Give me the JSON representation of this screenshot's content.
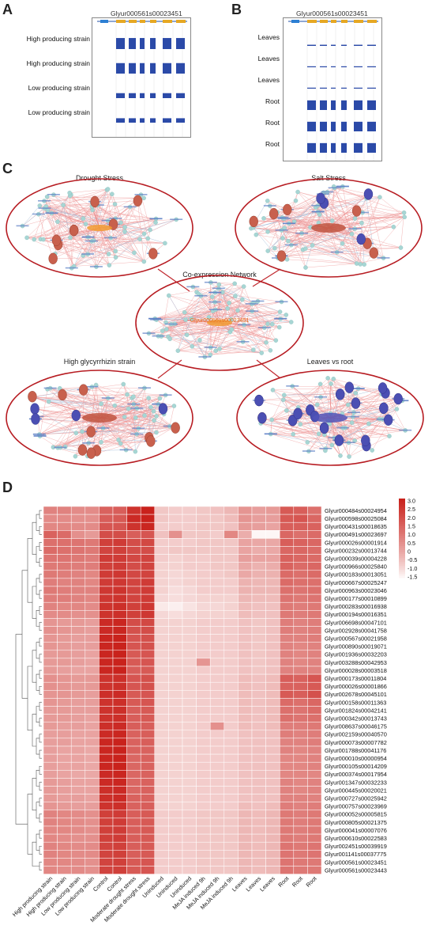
{
  "panels": {
    "A": {
      "letter": "A",
      "gene": "Glyur000561s00023451",
      "labels": [
        "High producing strain",
        "High producing strain",
        "Low producing strain",
        "Low producing strain"
      ],
      "heights": [
        1.0,
        0.95,
        0.45,
        0.4
      ]
    },
    "B": {
      "letter": "B",
      "gene": "Glyur000561s00023451",
      "labels": [
        "Leaves",
        "Leaves",
        "Leaves",
        "Root",
        "Root",
        "Root"
      ],
      "heights": [
        0.12,
        0.1,
        0.1,
        1.0,
        1.0,
        1.0
      ]
    },
    "C": {
      "letter": "C",
      "center_title": "Co-expression Network",
      "center_gene": "Glyur000561s00023451",
      "networks": [
        {
          "title": "Drought Stress"
        },
        {
          "title": "Salt Stress"
        },
        {
          "title": "High glycyrrhizin strain"
        },
        {
          "title": "Leaves vs root"
        }
      ]
    },
    "D": {
      "letter": "D",
      "colorbar_ticks": [
        "3.0",
        "2.5",
        "2.0",
        "1.5",
        "1.0",
        "0.5",
        "0",
        "-0.5",
        "-1.0",
        "-1.5"
      ]
    }
  },
  "chart_data": {
    "type": "heatmap",
    "columns": [
      "High producing strain",
      "High producing strain",
      "Low producing strain",
      "Low producing strain",
      "Control",
      "Control",
      "Moderate drought stress",
      "Moderate drought stress",
      "Uninduced",
      "Uninduced",
      "Uninduced",
      "MeJA induced 9h",
      "MeJA induced 9h",
      "MeJA induced 9h",
      "Leaves",
      "Leaves",
      "Leaves",
      "Root",
      "Root",
      "Root"
    ],
    "rows": [
      "Glyur000484s00024954",
      "Glyur000598s00025084",
      "Glyur000431s00018635",
      "Glyur000491s00023697",
      "Glyur000026s00001914",
      "Glyur000232s00013744",
      "Glyur000039s00004228",
      "Glyur000966s00025840",
      "Glyur000183s00013051",
      "Glyur000667s00025247",
      "Glyur000963s00023046",
      "Glyur000177s00010899",
      "Glyur000283s00016938",
      "Glyur000194s00016351",
      "Glyur006698s00047101",
      "Glyur002928s00041758",
      "Glyur000567s00021958",
      "Glyur000890s00019071",
      "Glyur001936s00032203",
      "Glyur003288s00042953",
      "Glyur000028s00003518",
      "Glyur000173s00011804",
      "Glyur000026s00001866",
      "Glyur002678s00045101",
      "Glyur000158s00011363",
      "Glyur001824s00042141",
      "Glyur000342s00013743",
      "Glyur008637s00046175",
      "Glyur002159s00040570",
      "Glyur000073s00007782",
      "Glyur001788s00041176",
      "Glyur000010s00000954",
      "Glyur000105s00014209",
      "Glyur000374s00017954",
      "Glyur001347s00032233",
      "Glyur000445s00020021",
      "Glyur000727s00025942",
      "Glyur000757s00023969",
      "Glyur000052s00005815",
      "Glyur000805s00021375",
      "Glyur000041s00007076",
      "Glyur000610s00022583",
      "Glyur002451s00039919",
      "Glyur001141s00037775",
      "Glyur000561s00023451",
      "Glyur000561s00023443"
    ],
    "values": [
      [
        0.8,
        0.8,
        0.6,
        0.6,
        1.5,
        1.6,
        2.6,
        3.0,
        -0.6,
        -0.7,
        -0.7,
        -0.6,
        -0.5,
        -0.3,
        0.4,
        0.2,
        0.3,
        1.7,
        1.6,
        1.2
      ],
      [
        0.6,
        0.6,
        0.5,
        0.5,
        1.6,
        1.7,
        2.8,
        3.0,
        -0.6,
        -0.7,
        -0.7,
        -0.6,
        -0.6,
        -0.4,
        0.4,
        0.2,
        0.2,
        1.7,
        1.8,
        1.4
      ],
      [
        0.7,
        0.7,
        0.6,
        0.6,
        1.8,
        1.8,
        2.6,
        2.9,
        -0.7,
        -0.7,
        -0.7,
        -0.6,
        -0.6,
        -0.5,
        0.3,
        0.2,
        0.1,
        1.6,
        1.6,
        1.5
      ],
      [
        1.5,
        1.3,
        0.5,
        0.3,
        2.0,
        2.0,
        1.6,
        1.8,
        -0.5,
        0.5,
        -0.6,
        -0.6,
        -0.7,
        0.7,
        -0.1,
        -1.4,
        -1.4,
        1.4,
        1.2,
        1.3
      ],
      [
        1.2,
        1.2,
        1.1,
        1.0,
        2.3,
        2.4,
        2.0,
        2.1,
        -0.7,
        -0.7,
        -0.7,
        -0.6,
        -0.6,
        -0.6,
        0.1,
        0.0,
        0.0,
        1.6,
        1.5,
        1.4
      ],
      [
        1.3,
        1.2,
        1.1,
        1.0,
        2.2,
        2.3,
        2.0,
        2.0,
        -0.7,
        -0.6,
        -0.6,
        -0.6,
        -0.6,
        -0.6,
        0.1,
        -0.1,
        0.0,
        1.4,
        1.4,
        1.3
      ],
      [
        1.1,
        1.1,
        1.0,
        0.9,
        2.4,
        2.4,
        2.1,
        2.2,
        -0.7,
        -0.8,
        -0.7,
        -0.7,
        -0.6,
        -0.6,
        0.2,
        0.1,
        0.1,
        1.5,
        1.4,
        1.3
      ],
      [
        1.0,
        1.0,
        0.9,
        0.9,
        2.3,
        2.4,
        2.0,
        2.2,
        -0.8,
        -0.8,
        -0.7,
        -0.7,
        -0.6,
        -0.6,
        0.0,
        -0.2,
        -0.1,
        1.5,
        1.3,
        1.4
      ],
      [
        1.0,
        0.9,
        0.8,
        0.7,
        2.4,
        2.5,
        2.1,
        2.2,
        -0.8,
        -0.9,
        -0.8,
        -0.7,
        -0.7,
        -0.6,
        0.0,
        -0.2,
        -0.2,
        1.3,
        1.2,
        1.3
      ],
      [
        0.9,
        0.8,
        0.8,
        0.7,
        2.4,
        2.5,
        2.2,
        2.4,
        -0.8,
        -0.9,
        -0.8,
        -0.7,
        -0.7,
        -0.7,
        -0.2,
        -0.3,
        -0.3,
        1.3,
        1.2,
        1.2
      ],
      [
        1.0,
        0.9,
        0.8,
        0.8,
        2.5,
        2.6,
        2.2,
        2.4,
        -0.8,
        -1.0,
        -0.9,
        -0.7,
        -0.7,
        -0.7,
        -0.2,
        -0.3,
        -0.3,
        1.2,
        1.1,
        1.2
      ],
      [
        0.9,
        0.9,
        0.8,
        0.7,
        2.5,
        2.6,
        2.2,
        2.4,
        -0.9,
        -1.0,
        -0.9,
        -0.8,
        -0.8,
        -0.8,
        -0.3,
        -0.4,
        -0.4,
        1.1,
        1.0,
        1.1
      ],
      [
        0.8,
        0.7,
        0.7,
        0.6,
        2.6,
        2.7,
        2.3,
        2.5,
        -1.2,
        -1.3,
        -1.1,
        -0.9,
        -0.9,
        -0.8,
        -0.4,
        -0.5,
        -0.5,
        1.0,
        0.9,
        1.0
      ],
      [
        0.6,
        0.6,
        0.5,
        0.5,
        2.6,
        2.7,
        2.3,
        2.5,
        -0.9,
        -1.0,
        -0.9,
        -0.8,
        -0.8,
        -0.8,
        -0.4,
        -0.5,
        -0.5,
        1.0,
        0.9,
        1.0
      ],
      [
        0.4,
        0.3,
        0.3,
        0.2,
        2.8,
        2.9,
        2.0,
        2.1,
        -0.8,
        -0.8,
        -0.8,
        -0.7,
        -0.7,
        -0.7,
        -0.5,
        -0.6,
        -0.5,
        0.9,
        0.8,
        0.9
      ],
      [
        0.5,
        0.4,
        0.3,
        0.2,
        2.8,
        2.9,
        1.9,
        2.0,
        -0.8,
        -0.8,
        -0.8,
        -0.7,
        -0.7,
        -0.7,
        -0.5,
        -0.6,
        -0.5,
        0.9,
        0.8,
        0.9
      ],
      [
        0.4,
        0.3,
        0.2,
        0.2,
        2.9,
        3.0,
        1.8,
        1.9,
        -0.8,
        -0.8,
        -0.8,
        -0.7,
        -0.7,
        -0.7,
        -0.5,
        -0.6,
        -0.5,
        0.8,
        0.8,
        0.9
      ],
      [
        0.4,
        0.3,
        0.2,
        0.2,
        2.9,
        3.0,
        1.8,
        1.9,
        -0.8,
        -0.8,
        -0.8,
        -0.7,
        -0.7,
        -0.7,
        -0.5,
        -0.6,
        -0.5,
        0.8,
        0.7,
        0.8
      ],
      [
        0.3,
        0.3,
        0.2,
        0.1,
        2.9,
        3.0,
        1.7,
        1.8,
        -0.8,
        -0.8,
        -0.8,
        -0.7,
        -0.7,
        -0.7,
        -0.5,
        -0.6,
        -0.5,
        0.8,
        0.7,
        0.8
      ],
      [
        0.3,
        0.3,
        0.2,
        0.1,
        2.9,
        3.0,
        1.7,
        1.8,
        -0.8,
        -0.8,
        -0.8,
        0.4,
        -0.7,
        -0.7,
        -0.5,
        -0.6,
        -0.5,
        0.8,
        0.7,
        0.8
      ],
      [
        0.3,
        0.2,
        0.1,
        0.1,
        2.9,
        3.0,
        1.6,
        1.7,
        -0.8,
        -0.8,
        -0.8,
        -0.7,
        -0.7,
        -0.7,
        -0.5,
        -0.6,
        -0.5,
        0.8,
        0.8,
        0.8
      ],
      [
        0.5,
        0.4,
        0.3,
        0.3,
        2.6,
        2.7,
        1.8,
        1.9,
        -0.8,
        -0.8,
        -0.8,
        -0.7,
        -0.7,
        -0.7,
        -0.4,
        -0.5,
        -0.4,
        1.6,
        1.5,
        1.8
      ],
      [
        0.5,
        0.4,
        0.3,
        0.3,
        2.6,
        2.7,
        1.8,
        1.9,
        -0.8,
        -0.8,
        -0.8,
        -0.7,
        -0.7,
        -0.7,
        -0.4,
        -0.5,
        -0.4,
        1.5,
        1.5,
        1.7
      ],
      [
        0.4,
        0.4,
        0.3,
        0.2,
        2.7,
        2.8,
        1.7,
        1.8,
        -0.8,
        -0.8,
        -0.8,
        -0.7,
        -0.7,
        -0.7,
        -0.4,
        -0.5,
        -0.4,
        1.7,
        1.6,
        1.9
      ],
      [
        0.4,
        0.3,
        0.2,
        0.2,
        2.6,
        2.7,
        1.7,
        1.8,
        -0.8,
        -0.8,
        -0.8,
        -0.7,
        -0.7,
        -0.7,
        -0.4,
        -0.5,
        -0.4,
        1.3,
        1.2,
        1.4
      ],
      [
        0.3,
        0.3,
        0.2,
        0.2,
        2.6,
        2.7,
        1.6,
        1.7,
        -0.8,
        -0.8,
        -0.8,
        -0.7,
        -0.7,
        -0.7,
        -0.4,
        -0.5,
        -0.4,
        1.2,
        1.1,
        1.3
      ],
      [
        0.3,
        0.3,
        0.2,
        0.1,
        2.6,
        2.7,
        1.6,
        1.7,
        -0.8,
        -0.8,
        -0.8,
        -0.7,
        -0.7,
        -0.7,
        -0.4,
        -0.5,
        -0.4,
        1.2,
        1.1,
        1.2
      ],
      [
        0.3,
        0.2,
        0.2,
        0.1,
        2.7,
        2.8,
        1.6,
        1.6,
        -0.8,
        -0.8,
        -0.8,
        -0.7,
        0.5,
        -0.7,
        -0.4,
        -0.5,
        -0.4,
        0.9,
        0.9,
        1.0
      ],
      [
        0.2,
        0.2,
        0.1,
        0.1,
        2.8,
        2.9,
        1.5,
        1.6,
        -0.8,
        -0.8,
        -0.8,
        -0.7,
        -0.7,
        -0.7,
        -0.5,
        -0.5,
        -0.5,
        0.9,
        0.8,
        0.9
      ],
      [
        0.2,
        0.2,
        0.1,
        0.1,
        2.9,
        3.0,
        1.5,
        1.6,
        -0.8,
        -0.8,
        -0.8,
        -0.7,
        -0.7,
        -0.7,
        -0.5,
        -0.5,
        -0.5,
        0.8,
        0.8,
        0.9
      ],
      [
        0.2,
        0.1,
        0.1,
        0.0,
        2.9,
        3.0,
        1.5,
        1.5,
        -0.8,
        -0.8,
        -0.8,
        -0.7,
        -0.7,
        -0.7,
        -0.5,
        -0.5,
        -0.5,
        0.8,
        0.7,
        0.8
      ],
      [
        0.2,
        0.1,
        0.1,
        0.0,
        2.9,
        3.0,
        1.4,
        1.5,
        -0.8,
        -0.8,
        -0.8,
        -0.7,
        -0.7,
        -0.7,
        -0.5,
        -0.5,
        -0.5,
        0.7,
        0.7,
        0.8
      ],
      [
        0.2,
        0.1,
        0.1,
        0.0,
        2.9,
        3.0,
        1.4,
        1.5,
        -0.8,
        -0.8,
        -0.8,
        -0.7,
        -0.7,
        -0.7,
        -0.5,
        -0.5,
        -0.5,
        0.7,
        0.7,
        0.8
      ],
      [
        0.2,
        0.1,
        0.0,
        0.0,
        2.8,
        2.9,
        1.4,
        1.5,
        -0.8,
        -0.8,
        -0.8,
        -0.7,
        -0.7,
        -0.7,
        -0.5,
        -0.5,
        -0.5,
        0.7,
        0.7,
        0.7
      ],
      [
        0.3,
        0.2,
        0.1,
        0.1,
        2.8,
        2.9,
        1.4,
        1.5,
        -0.8,
        -0.8,
        -0.8,
        -0.7,
        -0.7,
        -0.7,
        -0.5,
        -0.5,
        -0.5,
        0.8,
        0.7,
        0.8
      ],
      [
        0.3,
        0.2,
        0.1,
        0.1,
        2.7,
        2.8,
        1.4,
        1.5,
        -0.8,
        -0.8,
        -0.8,
        -0.7,
        -0.7,
        -0.7,
        -0.5,
        -0.5,
        -0.5,
        0.8,
        0.7,
        0.8
      ],
      [
        0.3,
        0.2,
        0.2,
        0.1,
        2.7,
        2.8,
        1.5,
        1.5,
        -0.8,
        -0.8,
        -0.8,
        -0.7,
        -0.7,
        -0.7,
        -0.5,
        -0.5,
        -0.5,
        0.8,
        0.8,
        0.8
      ],
      [
        0.4,
        0.3,
        0.2,
        0.2,
        2.6,
        2.7,
        1.5,
        1.6,
        -0.8,
        -0.8,
        -0.8,
        -0.7,
        -0.7,
        -0.7,
        -0.4,
        -0.5,
        -0.4,
        0.9,
        0.8,
        0.9
      ],
      [
        0.8,
        0.7,
        0.6,
        0.5,
        2.3,
        2.4,
        1.6,
        1.7,
        -0.7,
        -0.7,
        -0.7,
        -0.6,
        -0.6,
        -0.6,
        -0.3,
        -0.4,
        -0.3,
        1.0,
        0.9,
        1.0
      ],
      [
        0.8,
        0.7,
        0.6,
        0.5,
        2.3,
        2.4,
        1.6,
        1.7,
        -0.7,
        -0.7,
        -0.7,
        -0.6,
        -0.6,
        -0.6,
        -0.3,
        -0.4,
        -0.3,
        1.0,
        0.9,
        1.0
      ],
      [
        0.7,
        0.7,
        0.6,
        0.5,
        2.3,
        2.4,
        1.6,
        1.7,
        -0.7,
        -0.7,
        -0.7,
        -0.6,
        -0.6,
        -0.6,
        -0.3,
        -0.4,
        -0.3,
        1.0,
        0.9,
        1.0
      ],
      [
        0.7,
        0.6,
        0.5,
        0.5,
        2.3,
        2.4,
        1.6,
        1.7,
        -0.7,
        -0.7,
        -0.7,
        -0.6,
        -0.6,
        -0.6,
        -0.3,
        -0.4,
        -0.3,
        1.0,
        0.9,
        1.0
      ],
      [
        0.8,
        0.7,
        0.6,
        0.6,
        2.2,
        2.3,
        1.6,
        1.7,
        -0.7,
        -0.7,
        -0.7,
        -0.6,
        -0.6,
        -0.6,
        -0.3,
        -0.4,
        -0.3,
        1.1,
        1.0,
        1.1
      ],
      [
        0.8,
        0.7,
        0.6,
        0.6,
        2.2,
        2.3,
        1.6,
        1.7,
        -0.7,
        -0.7,
        -0.7,
        -0.6,
        -0.6,
        -0.6,
        -0.3,
        -0.4,
        -0.3,
        1.1,
        1.0,
        1.1
      ],
      [
        0.7,
        0.7,
        0.6,
        0.5,
        2.2,
        2.3,
        1.7,
        1.8,
        -0.7,
        -0.7,
        -0.7,
        -0.6,
        -0.6,
        -0.6,
        -0.3,
        -0.4,
        -0.3,
        1.1,
        1.0,
        1.0
      ],
      [
        0.7,
        0.6,
        0.6,
        0.5,
        2.2,
        2.3,
        1.7,
        1.8,
        -0.7,
        -0.7,
        -0.7,
        -0.6,
        -0.6,
        -0.6,
        -0.3,
        -0.4,
        -0.3,
        1.1,
        1.0,
        1.0
      ]
    ],
    "vmin": -1.5,
    "vmax": 3.0,
    "colors": {
      "low": "#ffffff",
      "high": "#c9221c"
    }
  }
}
